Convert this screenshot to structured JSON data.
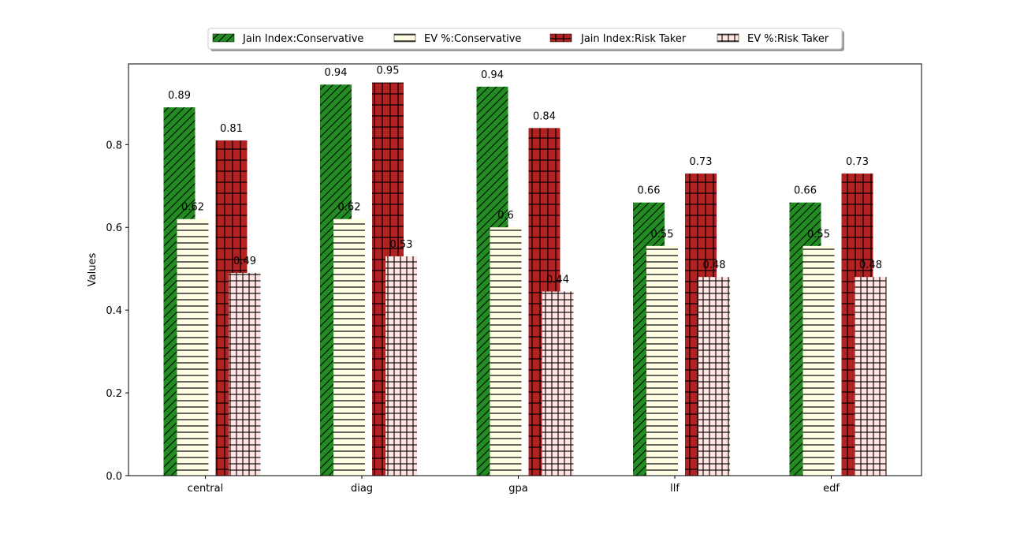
{
  "chart_data": {
    "type": "bar",
    "ylabel": "Values",
    "xlabel": "",
    "ylim": [
      0,
      0.995
    ],
    "yticks": [
      "0.0",
      "0.2",
      "0.4",
      "0.6",
      "0.8"
    ],
    "ytick_values": [
      0.0,
      0.2,
      0.4,
      0.6,
      0.8
    ],
    "categories": [
      "central",
      "diag",
      "gpa",
      "llf",
      "edf"
    ],
    "legend_position": "top-center",
    "series": [
      {
        "name": "Jain Index:Conservative",
        "values": [
          0.89,
          0.945,
          0.94,
          0.66,
          0.66
        ],
        "labels": [
          "0.89",
          "0.94",
          "0.94",
          "0.66",
          "0.66"
        ],
        "color": "#228b22",
        "pattern": "diagonal"
      },
      {
        "name": "EV %:Conservative",
        "values": [
          0.62,
          0.62,
          0.6,
          0.555,
          0.555
        ],
        "labels": [
          "0.62",
          "0.62",
          "0.6",
          "0.55",
          "0.55"
        ],
        "color": "#fffde4",
        "pattern": "horizontal"
      },
      {
        "name": "Jain Index:Risk Taker",
        "values": [
          0.81,
          0.95,
          0.84,
          0.73,
          0.73
        ],
        "labels": [
          "0.81",
          "0.95",
          "0.84",
          "0.73",
          "0.73"
        ],
        "color": "#b22222",
        "pattern": "grid"
      },
      {
        "name": "EV %:Risk Taker",
        "values": [
          0.49,
          0.53,
          0.445,
          0.48,
          0.48
        ],
        "labels": [
          "0.49",
          "0.53",
          "0.44",
          "0.48",
          "0.48"
        ],
        "color": "#ffe4e1",
        "pattern": "grid"
      }
    ]
  }
}
